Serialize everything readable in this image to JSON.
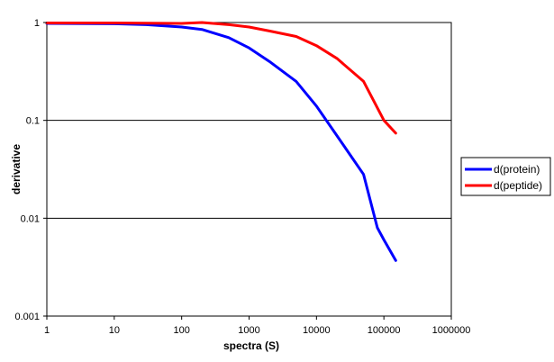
{
  "chart_data": {
    "type": "line",
    "xlabel": "spectra (S)",
    "ylabel": "derivative",
    "x_scale": "log",
    "y_scale": "log",
    "xlim": [
      1,
      1000000
    ],
    "ylim": [
      0.001,
      1
    ],
    "x_ticks": [
      "1",
      "10",
      "100",
      "1000",
      "10000",
      "100000",
      "1000000"
    ],
    "y_ticks": [
      "1",
      "0.1",
      "0.01",
      "0.001"
    ],
    "grid": "horizontal major lines",
    "legend_position": "right",
    "series": [
      {
        "name": "d(protein)",
        "color": "#0000ff",
        "x": [
          1,
          10,
          30,
          100,
          200,
          500,
          1000,
          2000,
          5000,
          10000,
          20000,
          50000,
          80000,
          100000,
          150000
        ],
        "y": [
          0.98,
          0.97,
          0.95,
          0.9,
          0.85,
          0.7,
          0.55,
          0.4,
          0.25,
          0.14,
          0.07,
          0.028,
          0.008,
          0.006,
          0.0037
        ]
      },
      {
        "name": "d(peptide)",
        "color": "#ff0000",
        "x": [
          1,
          10,
          100,
          200,
          500,
          1000,
          2000,
          5000,
          10000,
          20000,
          50000,
          100000,
          150000
        ],
        "y": [
          0.99,
          0.99,
          0.98,
          1.0,
          0.95,
          0.9,
          0.82,
          0.72,
          0.58,
          0.43,
          0.25,
          0.1,
          0.074
        ]
      }
    ]
  }
}
